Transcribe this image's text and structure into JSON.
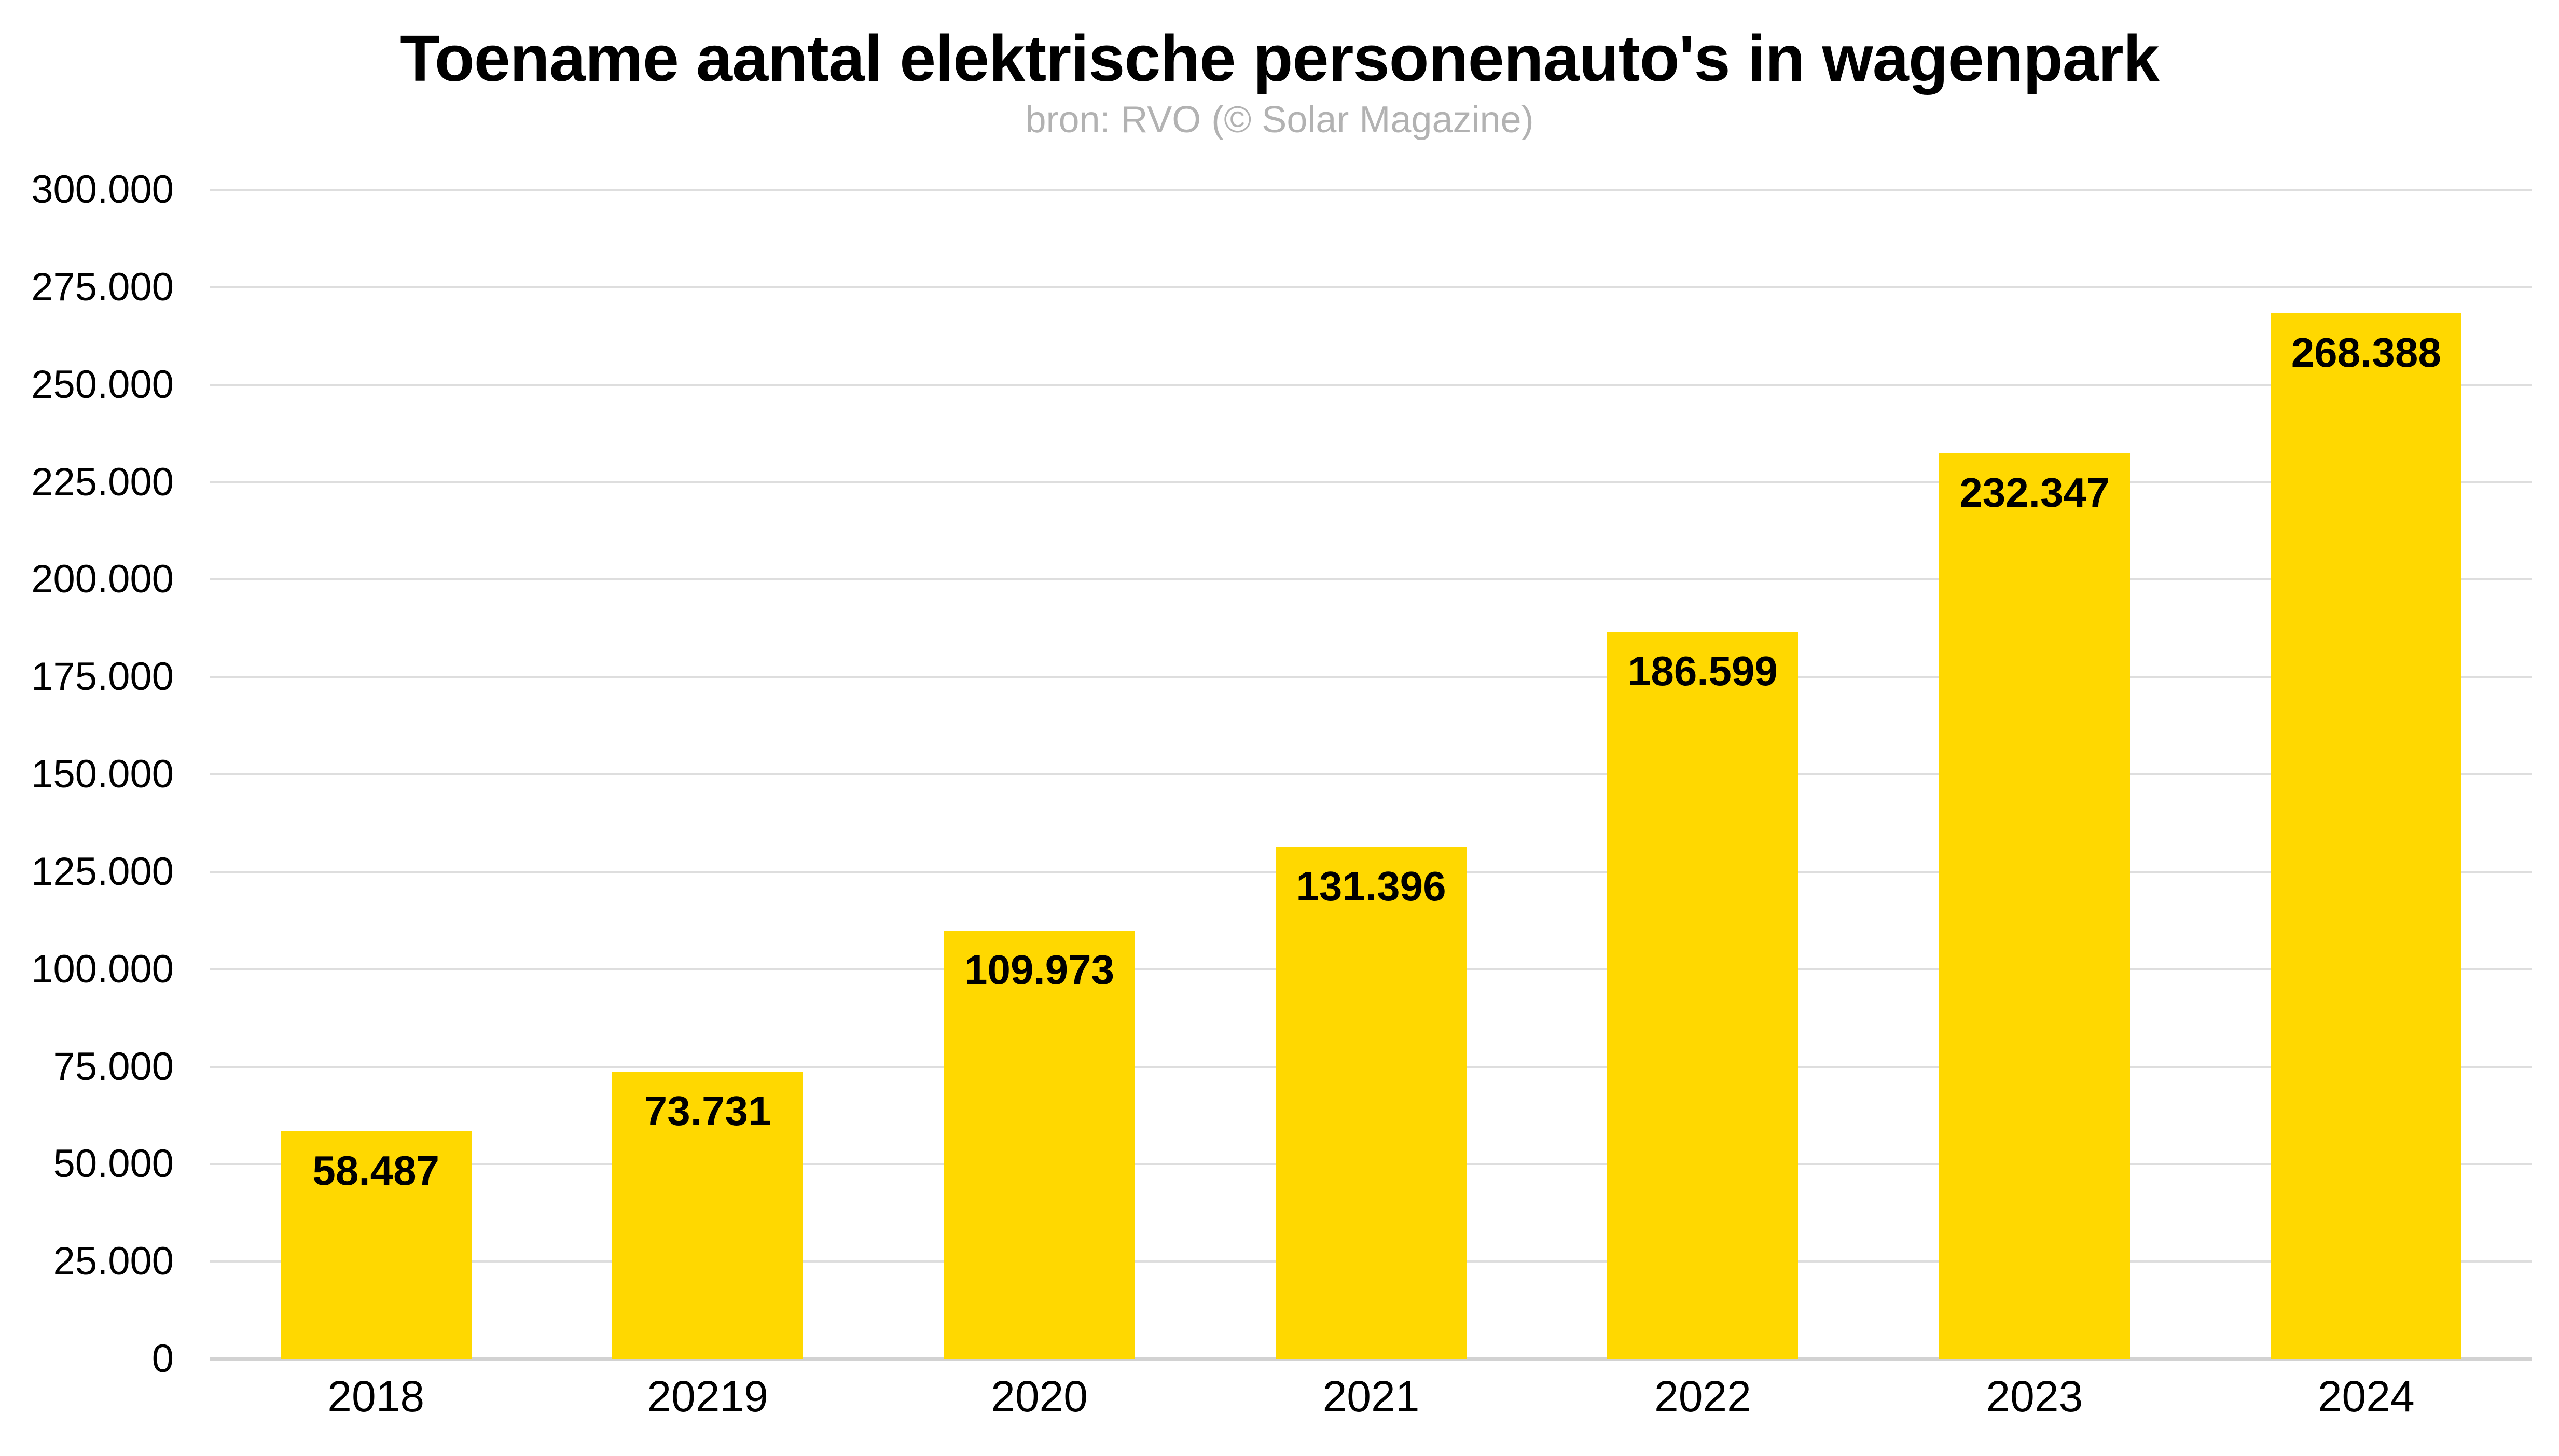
{
  "colors": {
    "bar": "#ffd800",
    "gridline": "#dedede",
    "baseline": "#d2d2d2",
    "subtitle": "#b2b2b2",
    "text": "#000000",
    "background": "#ffffff"
  },
  "chart_data": {
    "type": "bar",
    "title": "Toename aantal elektrische personenauto's in wagenpark",
    "subtitle": "bron: RVO (© Solar Magazine)",
    "categories": [
      "2018",
      "20219",
      "2020",
      "2021",
      "2022",
      "2023",
      "2024"
    ],
    "values": [
      58487,
      73731,
      109973,
      131396,
      186599,
      232347,
      268388
    ],
    "value_labels": [
      "58.487",
      "73.731",
      "109.973",
      "131.396",
      "186.599",
      "232.347",
      "268.388"
    ],
    "xlabel": "",
    "ylabel": "",
    "ylim": [
      0,
      300000
    ],
    "yticks": [
      0,
      25000,
      50000,
      75000,
      100000,
      125000,
      150000,
      175000,
      200000,
      225000,
      250000,
      275000,
      300000
    ],
    "ytick_labels": [
      "0",
      "25.000",
      "50.000",
      "75.000",
      "100.000",
      "125.000",
      "150.000",
      "175.000",
      "200.000",
      "225.000",
      "250.000",
      "275.000",
      "300.000"
    ],
    "grid": "horizontal",
    "legend_position": "none"
  }
}
